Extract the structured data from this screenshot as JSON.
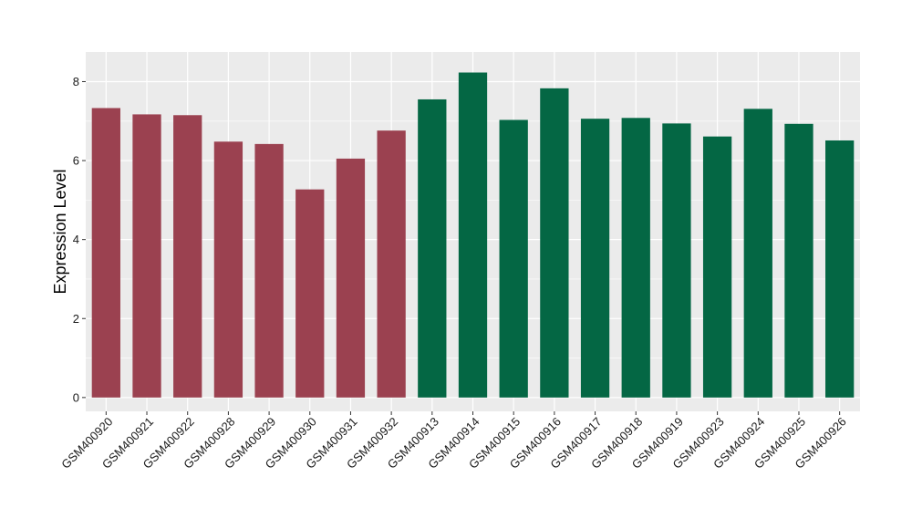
{
  "chart_data": {
    "type": "bar",
    "ylabel": "Expression Level",
    "xlabel": "",
    "title": "",
    "ylim": [
      -0.35,
      8.75
    ],
    "yticks": [
      0,
      2,
      4,
      6,
      8
    ],
    "grid": true,
    "colors": {
      "group_a": "#9b4150",
      "group_b": "#046744",
      "panel": "#ebebeb",
      "grid": "#ffffff"
    },
    "categories": [
      "GSM400920",
      "GSM400921",
      "GSM400922",
      "GSM400928",
      "GSM400929",
      "GSM400930",
      "GSM400931",
      "GSM400932",
      "GSM400913",
      "GSM400914",
      "GSM400915",
      "GSM400916",
      "GSM400917",
      "GSM400918",
      "GSM400919",
      "GSM400923",
      "GSM400924",
      "GSM400925",
      "GSM400926"
    ],
    "values": [
      7.33,
      7.17,
      7.15,
      6.48,
      6.42,
      5.27,
      6.05,
      6.76,
      7.55,
      8.23,
      7.03,
      7.83,
      7.06,
      7.08,
      6.94,
      6.61,
      7.31,
      6.93,
      6.51
    ],
    "bar_groups": [
      "group_a",
      "group_a",
      "group_a",
      "group_a",
      "group_a",
      "group_a",
      "group_a",
      "group_a",
      "group_b",
      "group_b",
      "group_b",
      "group_b",
      "group_b",
      "group_b",
      "group_b",
      "group_b",
      "group_b",
      "group_b",
      "group_b"
    ]
  }
}
